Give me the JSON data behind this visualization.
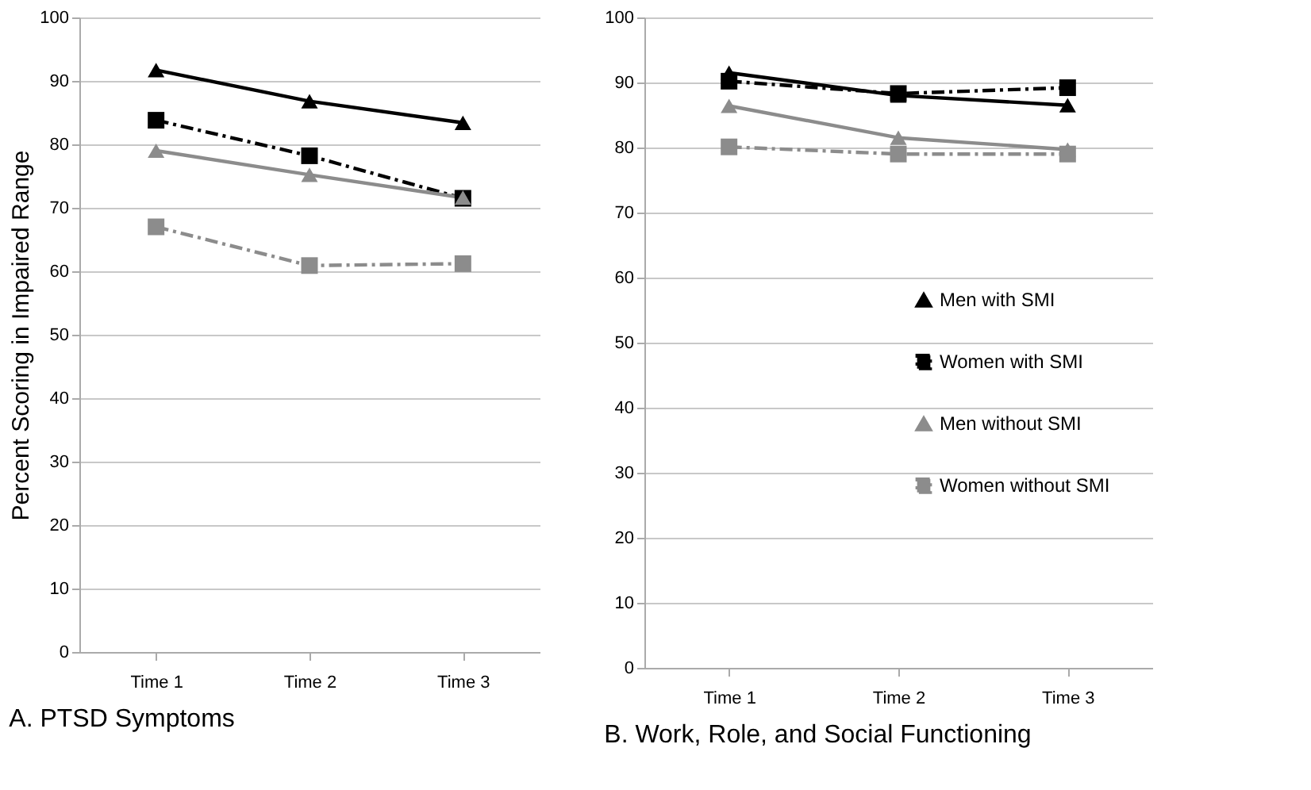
{
  "chart_data": [
    {
      "type": "line",
      "title": "A. PTSD Symptoms",
      "ylabel": "Percent Scoring in Impaired Range",
      "categories": [
        "Time 1",
        "Time 2",
        "Time 3"
      ],
      "ylim": [
        0,
        100
      ],
      "yticks": [
        0,
        10,
        20,
        30,
        40,
        50,
        60,
        70,
        80,
        90,
        100
      ],
      "grid": "y",
      "legend": false,
      "series": [
        {
          "color": "#000000",
          "marker": "triangle",
          "line_style": "solid",
          "values": [
            91.7,
            86.8,
            83.4
          ]
        },
        {
          "color": "#000000",
          "marker": "square",
          "line_style": "dashed",
          "values": [
            83.8,
            78.2,
            71.5
          ]
        },
        {
          "color": "#8c8c8c",
          "marker": "triangle",
          "line_style": "solid",
          "values": [
            79.0,
            75.2,
            71.6
          ]
        },
        {
          "color": "#8c8c8c",
          "marker": "square",
          "line_style": "dashed",
          "values": [
            67.0,
            60.9,
            61.2
          ]
        }
      ]
    },
    {
      "type": "line",
      "title": "B. Work, Role, and Social Functioning",
      "categories": [
        "Time 1",
        "Time 2",
        "Time 3"
      ],
      "ylim": [
        0,
        100
      ],
      "yticks": [
        0,
        10,
        20,
        30,
        40,
        50,
        60,
        70,
        80,
        90,
        100
      ],
      "grid": "y",
      "legend": "right",
      "series": [
        {
          "name": "Men with SMI",
          "color": "#000000",
          "marker": "triangle",
          "line_style": "solid",
          "values": [
            91.5,
            88.0,
            86.5
          ]
        },
        {
          "name": "Women with SMI",
          "color": "#000000",
          "marker": "square",
          "line_style": "dashed",
          "values": [
            90.2,
            88.3,
            89.2
          ]
        },
        {
          "name": "Men without SMI",
          "color": "#8c8c8c",
          "marker": "triangle",
          "line_style": "solid",
          "values": [
            86.4,
            81.5,
            79.7
          ]
        },
        {
          "name": "Women without SMI",
          "color": "#8c8c8c",
          "marker": "square",
          "line_style": "dashed",
          "values": [
            80.1,
            79.0,
            79.0
          ]
        }
      ]
    }
  ]
}
